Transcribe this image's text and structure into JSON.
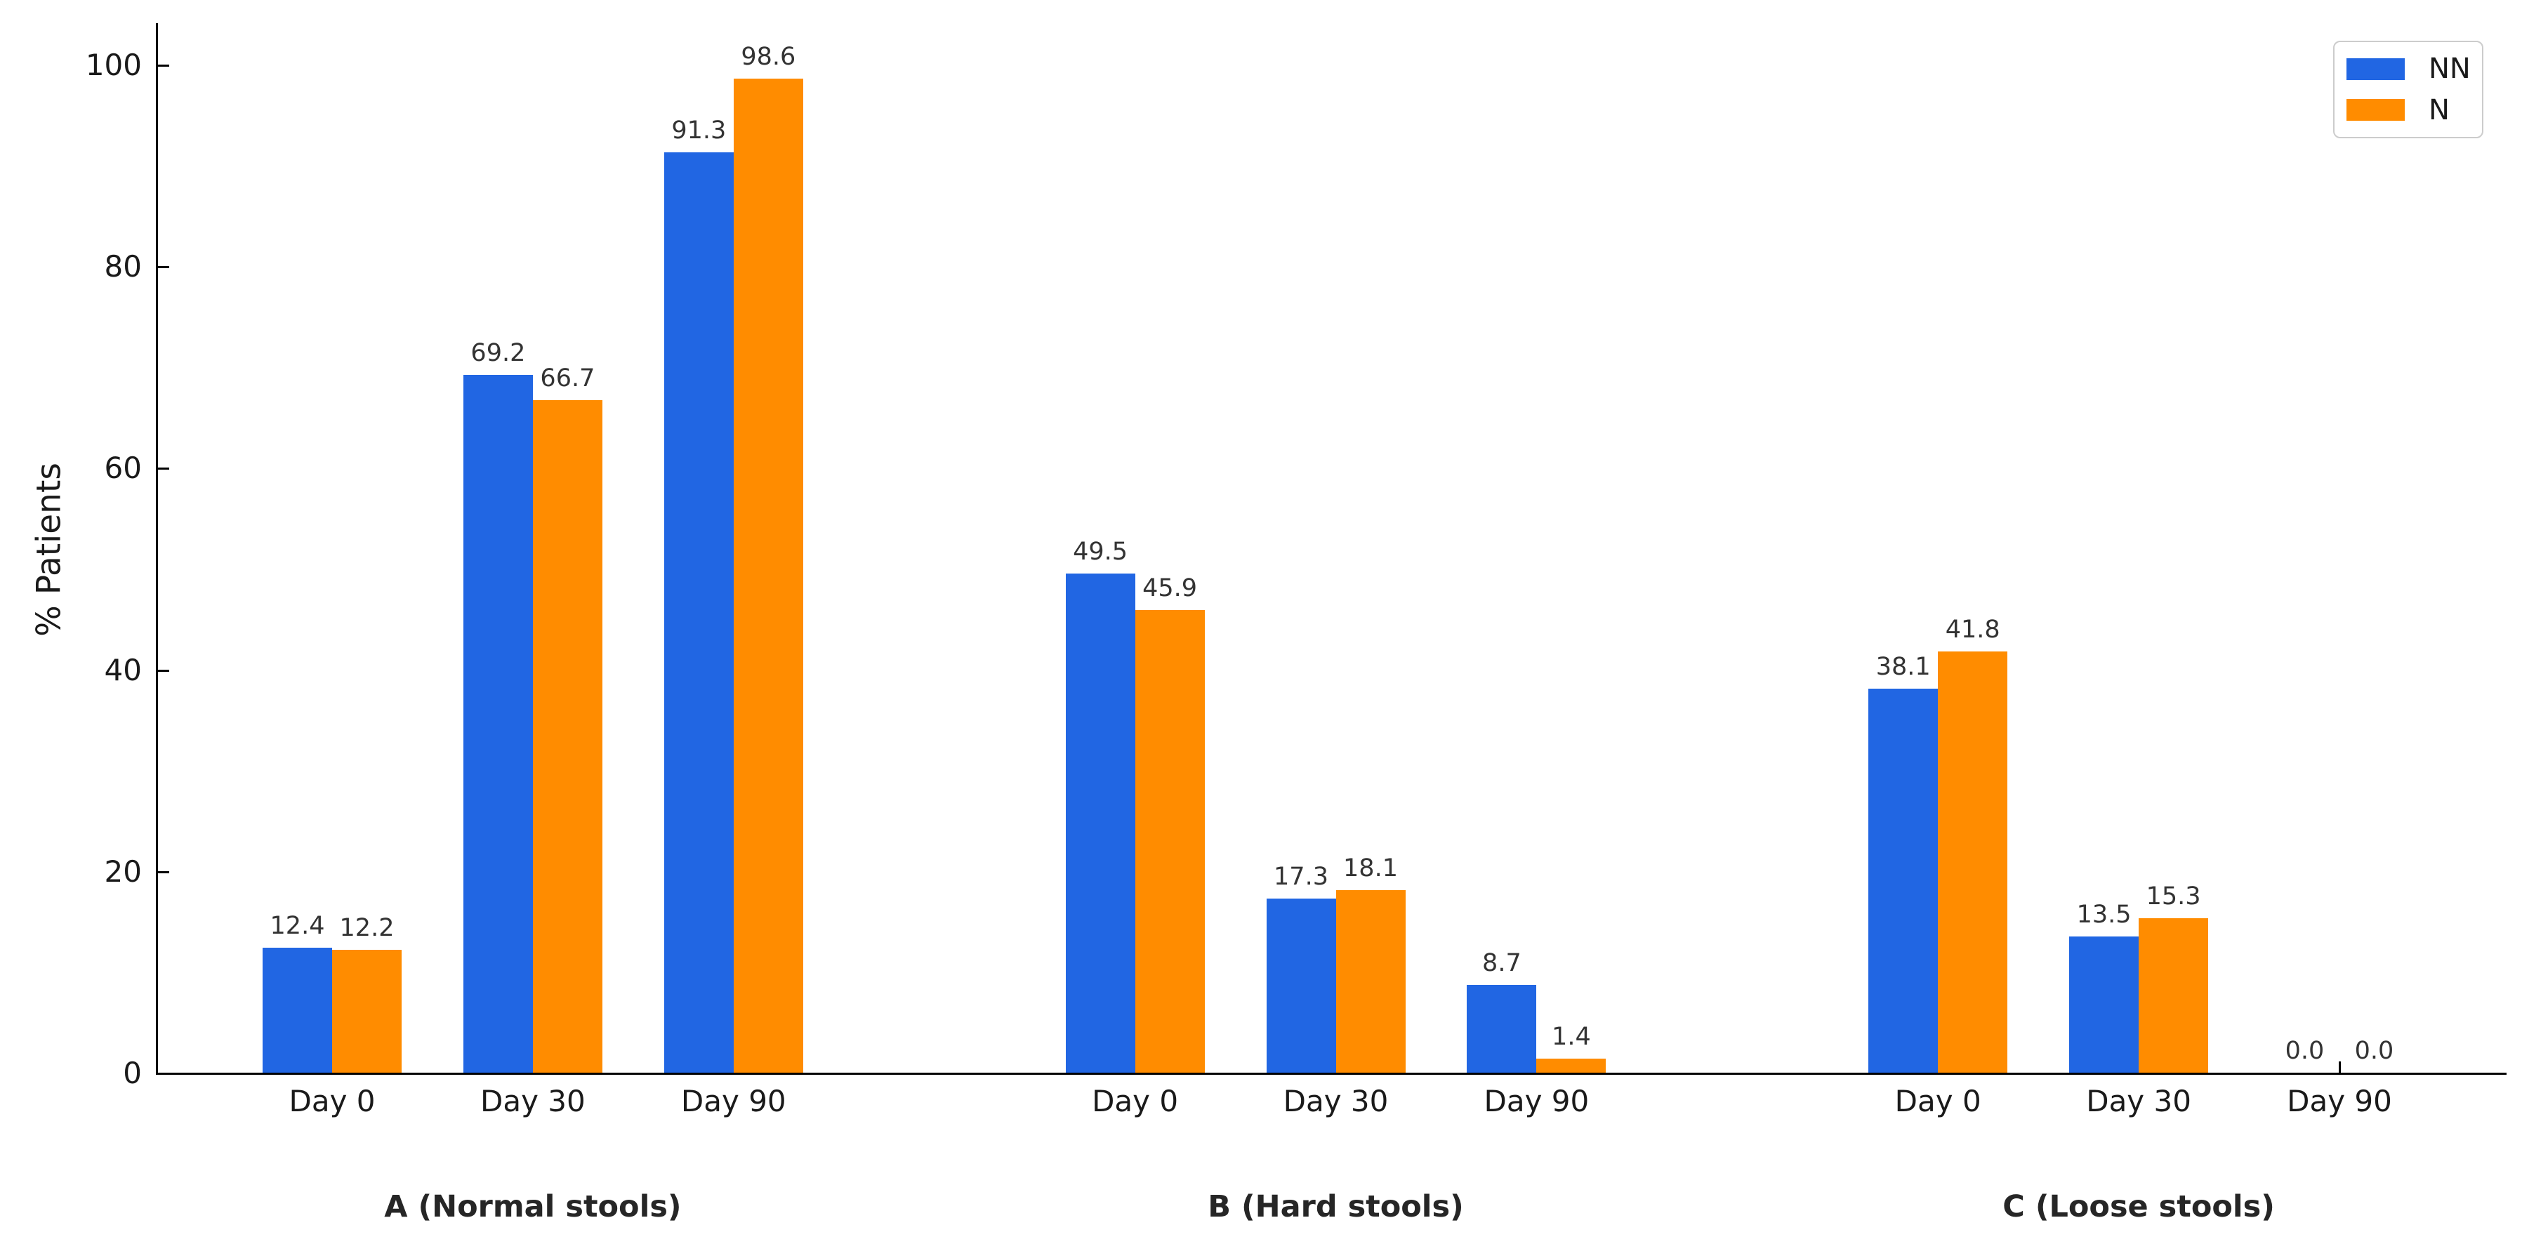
{
  "figure_title": "",
  "ylabel": "% Patients",
  "legend": {
    "entries": [
      {
        "label": "NN",
        "color": "#2166e3"
      },
      {
        "label": "N",
        "color": "#ff8c00"
      }
    ],
    "position": "upper right"
  },
  "colors": {
    "series_nn": "#2166e3",
    "series_n": "#ff8c00",
    "axis": "#000000",
    "tick_text": "#1a1a1a",
    "value_text": "#333333",
    "legend_border": "#cccccc"
  },
  "chart_data": {
    "type": "bar",
    "title": "",
    "xlabel": "",
    "ylabel": "% Patients",
    "ylim": [
      0,
      100
    ],
    "yticks": [
      0,
      20,
      40,
      60,
      80,
      100
    ],
    "grid": false,
    "legend_position": "upper right",
    "value_labels_decimals": 1,
    "series_names": [
      "NN",
      "N"
    ],
    "series_colors": [
      "#2166e3",
      "#ff8c00"
    ],
    "groups": [
      {
        "title": "A (Normal stools)",
        "categories": [
          "Day 0",
          "Day 30",
          "Day 90"
        ],
        "series": [
          {
            "name": "NN",
            "values": [
              12.4,
              69.2,
              91.3
            ]
          },
          {
            "name": "N",
            "values": [
              12.2,
              66.7,
              98.6
            ]
          }
        ]
      },
      {
        "title": "B (Hard stools)",
        "categories": [
          "Day 0",
          "Day 30",
          "Day 90"
        ],
        "series": [
          {
            "name": "NN",
            "values": [
              49.5,
              17.3,
              8.7
            ]
          },
          {
            "name": "N",
            "values": [
              45.9,
              18.1,
              1.4
            ]
          }
        ]
      },
      {
        "title": "C (Loose stools)",
        "categories": [
          "Day 0",
          "Day 30",
          "Day 90"
        ],
        "series": [
          {
            "name": "NN",
            "values": [
              38.1,
              13.5,
              0.0
            ]
          },
          {
            "name": "N",
            "values": [
              41.8,
              15.3,
              0.0
            ]
          }
        ]
      }
    ]
  }
}
